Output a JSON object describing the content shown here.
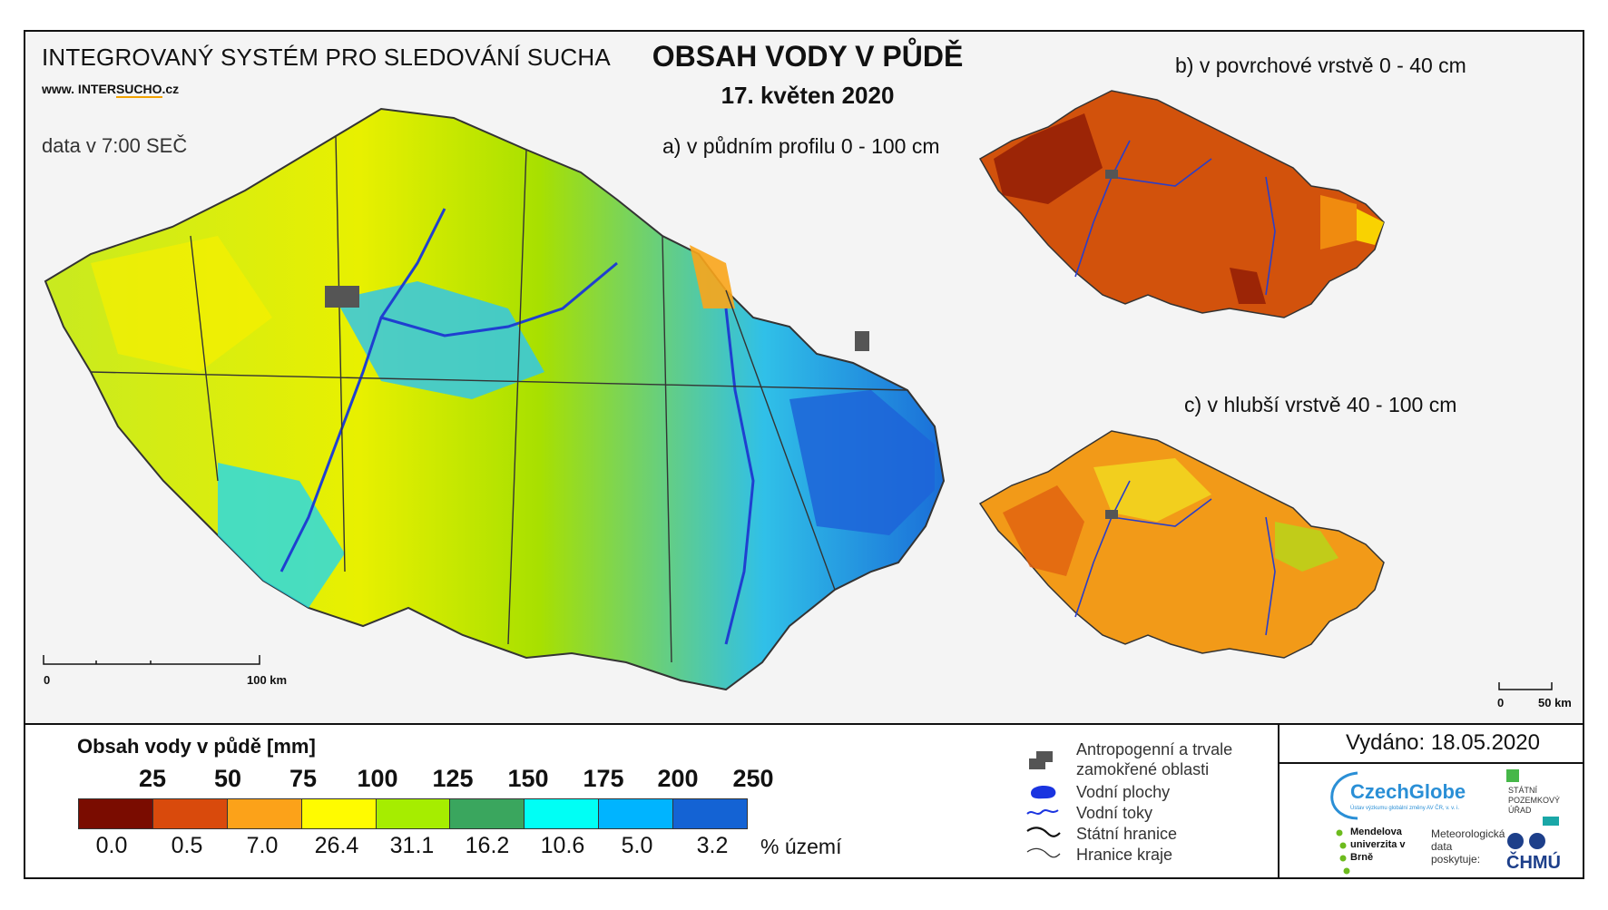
{
  "header": {
    "system_title": "INTEGROVANÝ SYSTÉM PRO SLEDOVÁNÍ SUCHA",
    "url_prefix": "www. INTER",
    "url_accent": "SUCHO",
    "url_suffix": ".cz",
    "data_time": "data v 7:00 SEČ",
    "title": "OBSAH VODY V PŮDĚ",
    "date": "17. květen 2020"
  },
  "maps": {
    "a_label": "a) v půdním profilu 0 - 100 cm",
    "b_label": "b) v povrchové vrstvě 0 - 40 cm",
    "c_label": "c) v hlubší vrstvě 40 - 100 cm",
    "scale_main": {
      "start": "0",
      "end": "100 km"
    },
    "scale_small": {
      "start": "0",
      "end": "50 km"
    }
  },
  "legend": {
    "title": "Obsah vody v půdě  [mm]",
    "thresholds": [
      "25",
      "50",
      "75",
      "100",
      "125",
      "150",
      "175",
      "200",
      "250"
    ],
    "colors": [
      "#7a0c00",
      "#d94a0c",
      "#fca219",
      "#fffb00",
      "#a6ed00",
      "#3aa65e",
      "#00fff5",
      "#00b4ff",
      "#1463d4"
    ],
    "percents": [
      "0.0",
      "0.5",
      "7.0",
      "26.4",
      "31.1",
      "16.2",
      "10.6",
      "5.0",
      "3.2"
    ],
    "percent_label": "% území"
  },
  "symbols": {
    "anthropogenic": "Antropogenní a trvale zamokřené oblasti",
    "water_bodies": "Vodní plochy",
    "streams": "Vodní toky",
    "state_border": "Státní hranice",
    "region_border": "Hranice kraje"
  },
  "footer": {
    "issued": "Vydáno: 18.05.2020",
    "czechglobe": "CzechGlobe",
    "czechglobe_sub": "Ústav výzkumu globální změny AV ČR, v. v. i.",
    "spu": "STÁTNÍ POZEMKOVÝ ÚŘAD",
    "mendelu": "Mendelova univerzita v Brně",
    "meteo": "Meteorologická data poskytuje:",
    "chmu": "ČHMÚ"
  }
}
